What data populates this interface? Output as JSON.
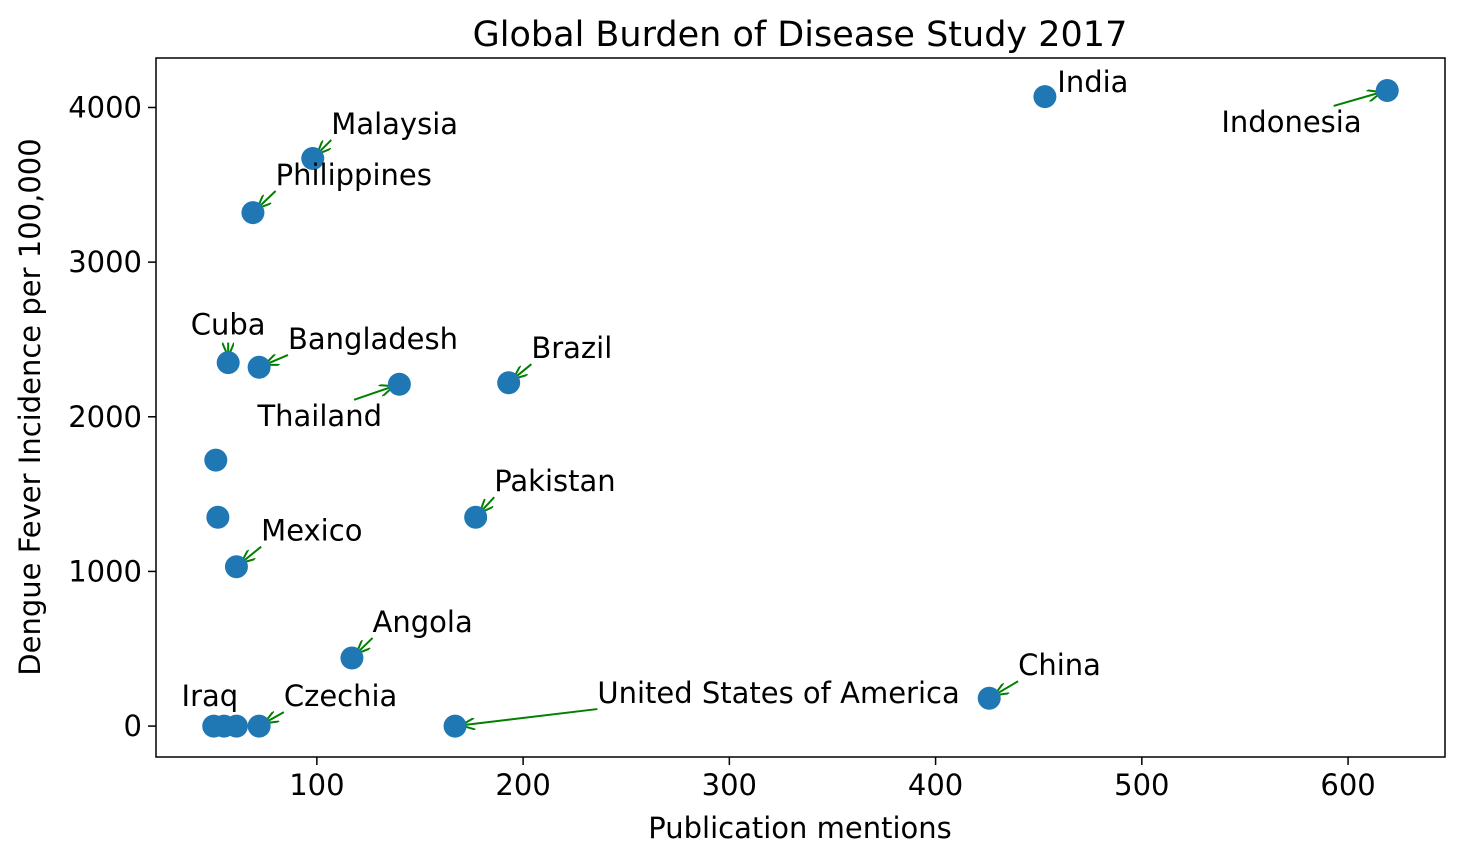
{
  "chart_data": {
    "type": "scatter",
    "title": "Global Burden of Disease Study 2017",
    "xlabel": "Publication mentions",
    "ylabel": "Dengue Fever Incidence per 100,000",
    "xlim": [
      22,
      647
    ],
    "ylim": [
      -200,
      4320
    ],
    "xticks": [
      100,
      200,
      300,
      400,
      500,
      600
    ],
    "yticks": [
      0,
      1000,
      2000,
      3000,
      4000
    ],
    "grid": false,
    "point_color": "#1f77b4",
    "arrow_color": "#008000",
    "points": [
      {
        "x": 619,
        "y": 4110,
        "label": "Indonesia",
        "tx": 593,
        "ty": 4010
      },
      {
        "x": 453,
        "y": 4070,
        "label": "India",
        "tx": 459,
        "ty": 4060
      },
      {
        "x": 98,
        "y": 3670,
        "label": "Malaysia",
        "tx": 107,
        "ty": 3790
      },
      {
        "x": 69,
        "y": 3320,
        "label": "Philippines",
        "tx": 80,
        "ty": 3460
      },
      {
        "x": 57,
        "y": 2350,
        "label": "Cuba",
        "tx": 57,
        "ty": 2480
      },
      {
        "x": 72,
        "y": 2320,
        "label": "Bangladesh",
        "tx": 86,
        "ty": 2400
      },
      {
        "x": 193,
        "y": 2220,
        "label": "Brazil",
        "tx": 204,
        "ty": 2340
      },
      {
        "x": 140,
        "y": 2210,
        "label": "Thailand",
        "tx": 118,
        "ty": 2110
      },
      {
        "x": 51,
        "y": 1720,
        "label": ""
      },
      {
        "x": 52,
        "y": 1350,
        "label": ""
      },
      {
        "x": 177,
        "y": 1350,
        "label": "Pakistan",
        "tx": 186,
        "ty": 1480
      },
      {
        "x": 61,
        "y": 1030,
        "label": "Mexico",
        "tx": 73,
        "ty": 1160
      },
      {
        "x": 117,
        "y": 440,
        "label": "Angola",
        "tx": 127,
        "ty": 570
      },
      {
        "x": 426,
        "y": 180,
        "label": "China",
        "tx": 440,
        "ty": 290
      },
      {
        "x": 50,
        "y": 0,
        "label": ""
      },
      {
        "x": 55,
        "y": 0,
        "label": "Iraq",
        "tx": 52,
        "ty": 90
      },
      {
        "x": 61,
        "y": 0,
        "label": ""
      },
      {
        "x": 72,
        "y": 0,
        "label": "Czechia",
        "tx": 84,
        "ty": 90
      },
      {
        "x": 167,
        "y": 0,
        "label": "United States of America",
        "tx": 236,
        "ty": 110
      }
    ]
  }
}
